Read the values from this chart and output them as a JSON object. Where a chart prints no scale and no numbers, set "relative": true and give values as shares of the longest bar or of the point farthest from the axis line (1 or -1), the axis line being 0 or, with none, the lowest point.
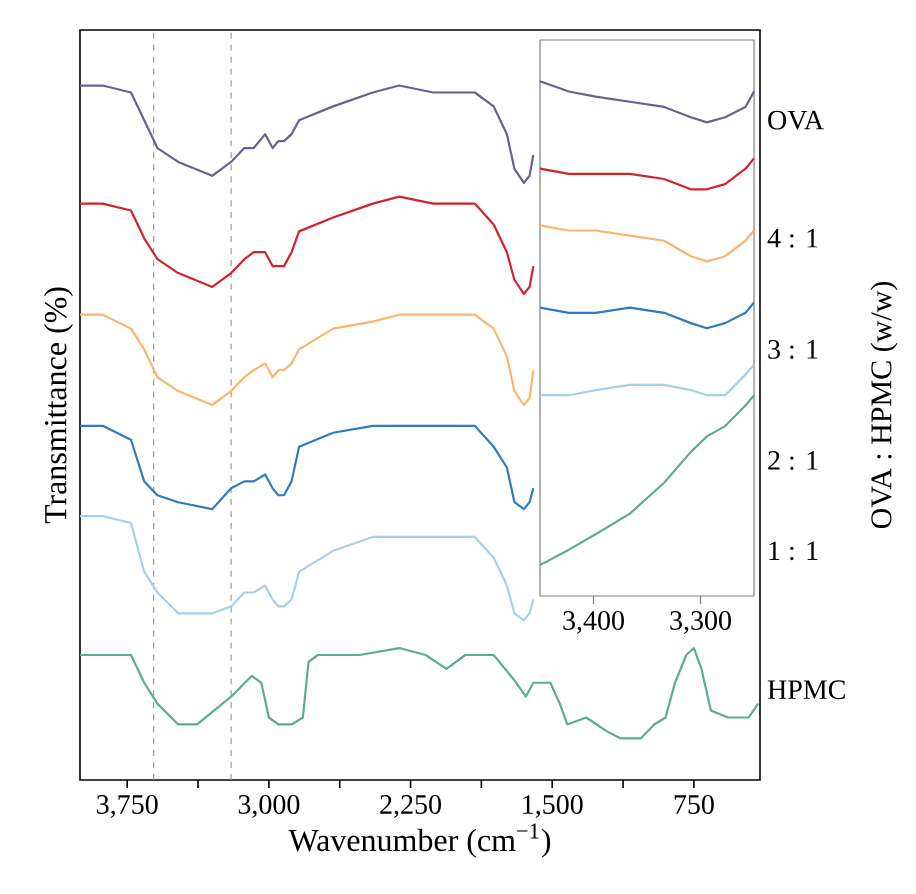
{
  "chart_data": [
    {
      "type": "line",
      "relative": true,
      "xlabel": "Wavenumber (cm$^{−1}$)",
      "ylabel": "Transmittance (%)",
      "legend_title": "OVA : HPMC (w/w)",
      "xlim": [
        4000,
        400
      ],
      "xticks": [
        {
          "value": 3750,
          "label": "3,750"
        },
        {
          "value": 3375,
          "label": null
        },
        {
          "value": 3000,
          "label": "3,000"
        },
        {
          "value": 2625,
          "label": null
        },
        {
          "value": 2250,
          "label": "2,250"
        },
        {
          "value": 1875,
          "label": null
        },
        {
          "value": 1500,
          "label": "1,500"
        },
        {
          "value": 1125,
          "label": null
        },
        750
      ],
      "x": [
        4000,
        3880,
        3730,
        3660,
        3590,
        3480,
        3300,
        3200,
        3130,
        3080,
        3020,
        2980,
        2950,
        2920,
        2880,
        2840,
        2660,
        2450,
        2310,
        2130,
        1910,
        1810,
        1740,
        1700,
        1650,
        1620,
        1600
      ],
      "ref_lines": [
        {
          "axis": "x",
          "value": 3610,
          "color": "#999999",
          "line_style": "dashed"
        },
        {
          "axis": "x",
          "value": 3200,
          "color": "#999999",
          "line_style": "dashed"
        }
      ],
      "series": [
        {
          "name": "OVA",
          "color": "#6e5f8c",
          "values": [
            1.0,
            1.0,
            0.99,
            0.95,
            0.91,
            0.89,
            0.87,
            0.89,
            0.91,
            0.91,
            0.93,
            0.91,
            0.92,
            0.92,
            0.93,
            0.95,
            0.97,
            0.99,
            1.0,
            0.99,
            0.99,
            0.97,
            0.93,
            0.88,
            0.86,
            0.87,
            0.9
          ]
        },
        {
          "name": "4 : 1",
          "color": "#d2232a",
          "values": [
            0.83,
            0.83,
            0.82,
            0.78,
            0.75,
            0.73,
            0.71,
            0.73,
            0.75,
            0.76,
            0.76,
            0.74,
            0.74,
            0.74,
            0.76,
            0.79,
            0.81,
            0.83,
            0.84,
            0.83,
            0.83,
            0.8,
            0.76,
            0.72,
            0.7,
            0.71,
            0.74
          ]
        },
        {
          "name": "3 : 1",
          "color": "#fdb46e",
          "values": [
            0.67,
            0.67,
            0.65,
            0.62,
            0.58,
            0.56,
            0.54,
            0.56,
            0.58,
            0.59,
            0.6,
            0.58,
            0.59,
            0.59,
            0.6,
            0.62,
            0.65,
            0.66,
            0.67,
            0.67,
            0.67,
            0.65,
            0.61,
            0.56,
            0.54,
            0.55,
            0.59
          ]
        },
        {
          "name": "2 : 1",
          "color": "#2f7bbf",
          "values": [
            0.51,
            0.51,
            0.49,
            0.43,
            0.41,
            0.4,
            0.39,
            0.42,
            0.43,
            0.43,
            0.44,
            0.42,
            0.41,
            0.41,
            0.43,
            0.48,
            0.5,
            0.51,
            0.51,
            0.51,
            0.51,
            0.48,
            0.45,
            0.4,
            0.39,
            0.4,
            0.42
          ]
        },
        {
          "name": "1 : 1",
          "color": "#a6d1e6",
          "values": [
            0.38,
            0.38,
            0.37,
            0.3,
            0.27,
            0.24,
            0.24,
            0.25,
            0.27,
            0.27,
            0.28,
            0.26,
            0.25,
            0.25,
            0.26,
            0.3,
            0.33,
            0.35,
            0.35,
            0.35,
            0.35,
            0.32,
            0.28,
            0.24,
            0.23,
            0.24,
            0.26
          ]
        },
        {
          "name": "HPMC",
          "color": "#5aae8e",
          "x": [
            4000,
            3730,
            3660,
            3590,
            3480,
            3380,
            3200,
            3090,
            3040,
            3000,
            2950,
            2880,
            2820,
            2790,
            2740,
            2520,
            2310,
            2170,
            2060,
            1960,
            1810,
            1690,
            1640,
            1600,
            1510,
            1460,
            1420,
            1320,
            1210,
            1140,
            1030,
            960,
            900,
            850,
            790,
            750,
            710,
            660,
            570,
            460,
            410
          ],
          "values": [
            0.18,
            0.18,
            0.14,
            0.11,
            0.08,
            0.08,
            0.12,
            0.15,
            0.14,
            0.09,
            0.08,
            0.08,
            0.09,
            0.17,
            0.18,
            0.18,
            0.19,
            0.18,
            0.16,
            0.18,
            0.18,
            0.14,
            0.12,
            0.14,
            0.14,
            0.11,
            0.08,
            0.09,
            0.07,
            0.06,
            0.06,
            0.08,
            0.09,
            0.14,
            0.18,
            0.19,
            0.16,
            0.1,
            0.09,
            0.09,
            0.11
          ]
        }
      ]
    },
    {
      "type": "line",
      "relative": true,
      "xlim": [
        3450,
        3250
      ],
      "xticks": [
        {
          "value": 3400,
          "label": "3,400"
        },
        {
          "value": 3300,
          "label": "3,300"
        }
      ],
      "x": [
        3450,
        3423,
        3398,
        3366,
        3334,
        3309,
        3294,
        3277,
        3258,
        3250
      ],
      "series": [
        {
          "color": "#6e5f8c",
          "values": [
            1.0,
            0.98,
            0.97,
            0.96,
            0.95,
            0.93,
            0.92,
            0.93,
            0.95,
            0.98
          ]
        },
        {
          "color": "#d2232a",
          "values": [
            0.83,
            0.82,
            0.82,
            0.82,
            0.81,
            0.79,
            0.79,
            0.8,
            0.83,
            0.85
          ]
        },
        {
          "color": "#fdb46e",
          "values": [
            0.72,
            0.71,
            0.71,
            0.7,
            0.69,
            0.66,
            0.65,
            0.66,
            0.69,
            0.71
          ]
        },
        {
          "color": "#2f7bbf",
          "values": [
            0.56,
            0.55,
            0.55,
            0.56,
            0.55,
            0.53,
            0.52,
            0.53,
            0.55,
            0.57
          ]
        },
        {
          "color": "#a6d1e6",
          "values": [
            0.39,
            0.39,
            0.4,
            0.41,
            0.41,
            0.4,
            0.39,
            0.39,
            0.43,
            0.45
          ]
        },
        {
          "color": "#5aae8e",
          "values": [
            0.06,
            0.09,
            0.12,
            0.16,
            0.22,
            0.28,
            0.31,
            0.33,
            0.37,
            0.39
          ]
        }
      ]
    }
  ]
}
